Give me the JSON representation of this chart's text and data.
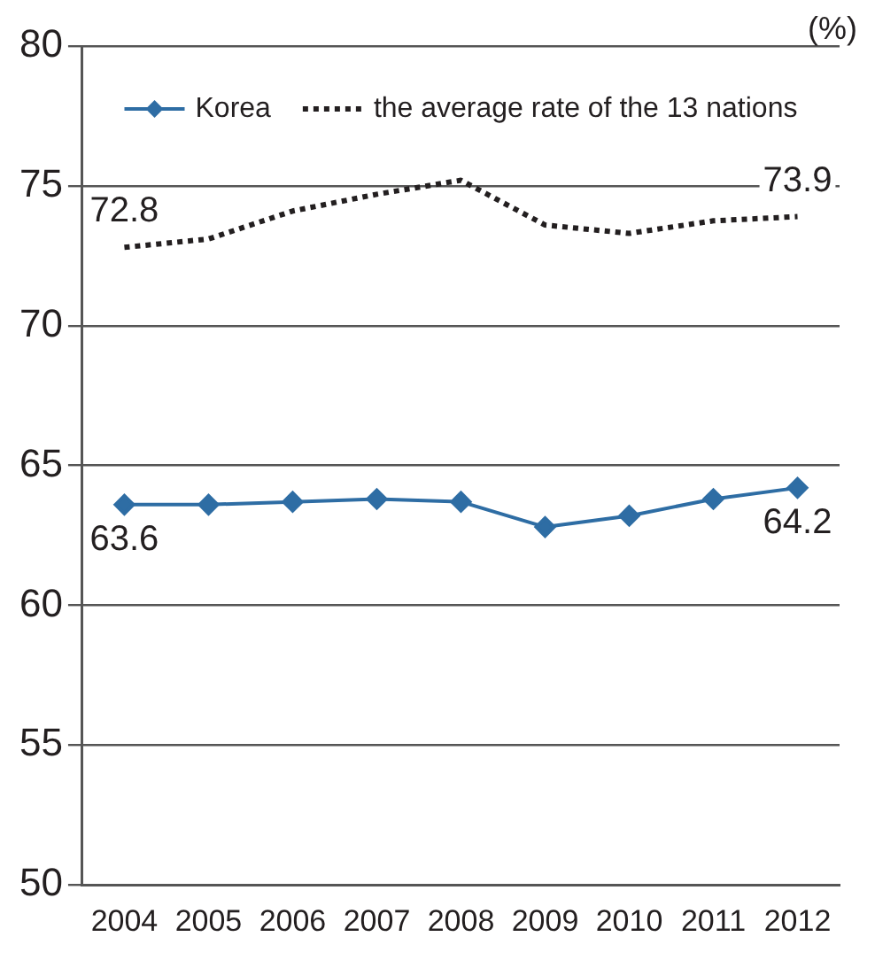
{
  "chart_data": {
    "type": "line",
    "ylabel": "(%)",
    "categories": [
      "2004",
      "2005",
      "2006",
      "2007",
      "2008",
      "2009",
      "2010",
      "2011",
      "2012"
    ],
    "series": [
      {
        "name": "Korea",
        "color": "#2e6da4",
        "marker": "diamond",
        "line_style": "solid",
        "values": [
          63.6,
          63.6,
          63.7,
          63.8,
          63.7,
          62.8,
          63.2,
          63.8,
          64.2
        ],
        "value_labels": [
          "63.6",
          null,
          null,
          null,
          null,
          null,
          null,
          null,
          "64.2"
        ]
      },
      {
        "name": "the average rate of the 13 nations",
        "color": "#231f20",
        "marker": "none",
        "line_style": "dotted",
        "values": [
          72.8,
          73.1,
          74.1,
          74.7,
          75.2,
          73.6,
          73.3,
          73.75,
          73.9
        ],
        "value_labels": [
          "72.8",
          null,
          null,
          null,
          null,
          null,
          null,
          null,
          "73.9"
        ]
      }
    ],
    "ylim": [
      50,
      80
    ],
    "yticks": [
      50,
      55,
      60,
      65,
      70,
      75,
      80
    ],
    "grid": "y",
    "legend": "top"
  }
}
